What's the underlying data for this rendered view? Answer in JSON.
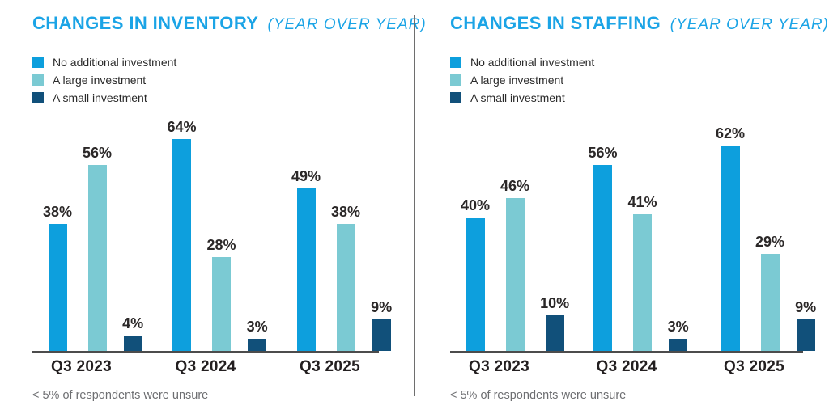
{
  "colors": {
    "title_accent": "#1ba4e6",
    "series": [
      "#0d9fdd",
      "#7bcad3",
      "#11507a"
    ],
    "axis": "#4c4c4c",
    "divider": "#6e6e6e",
    "category_label": "#231f20",
    "footnote": "#6d6e71"
  },
  "chart_data": [
    {
      "type": "bar",
      "title": "CHANGES IN INVENTORY",
      "subtitle": "(YEAR OVER YEAR)",
      "categories": [
        "Q3 2023",
        "Q3 2024",
        "Q3 2025"
      ],
      "series": [
        {
          "name": "No additional investment",
          "values": [
            38,
            64,
            49
          ]
        },
        {
          "name": "A large investment",
          "values": [
            56,
            28,
            38
          ]
        },
        {
          "name": "A small investment",
          "values": [
            4,
            3,
            9
          ]
        }
      ],
      "value_suffix": "%",
      "ylim": [
        0,
        70
      ],
      "grid": false,
      "legend_position": "top-left",
      "footnote": "< 5% of respondents were unsure"
    },
    {
      "type": "bar",
      "title": "CHANGES IN STAFFING",
      "subtitle": "(YEAR OVER YEAR)",
      "categories": [
        "Q3 2023",
        "Q3 2024",
        "Q3 2025"
      ],
      "series": [
        {
          "name": "No additional investment",
          "values": [
            40,
            56,
            62
          ]
        },
        {
          "name": "A large investment",
          "values": [
            46,
            41,
            29
          ]
        },
        {
          "name": "A small investment",
          "values": [
            10,
            3,
            9
          ]
        }
      ],
      "value_suffix": "%",
      "ylim": [
        0,
        70
      ],
      "grid": false,
      "legend_position": "top-left",
      "footnote": "< 5% of respondents were unsure"
    }
  ]
}
